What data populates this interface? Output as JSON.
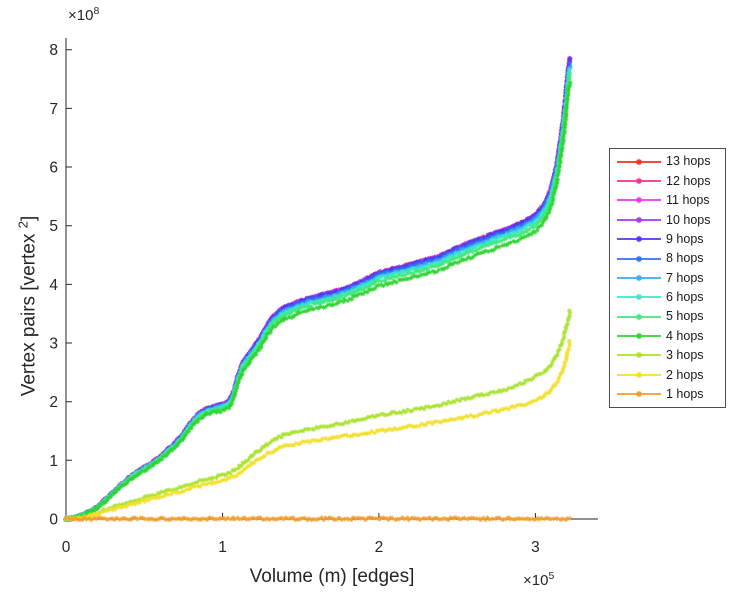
{
  "figure": {
    "title": "",
    "xlabel": "Volume (m) [edges]",
    "ylabel_main": "Vertex pairs [vertex ",
    "ylabel_sup": "2",
    "ylabel_end": "]",
    "x_exponent_prefix": "×10",
    "x_exponent_sup": "5",
    "y_exponent_prefix": "×10",
    "y_exponent_sup": "8",
    "axis_color": "#262626",
    "text_color": "#262626",
    "background_color": "#ffffff",
    "legend_border_color": "#4d4d4d"
  },
  "chart_data": {
    "type": "line",
    "marker": "asterisk",
    "title": "",
    "xlabel": "Volume (m) [edges]",
    "ylabel": "Vertex pairs [vertex^2]",
    "xlim": [
      0,
      340000
    ],
    "ylim": [
      0,
      820000000
    ],
    "grid": false,
    "legend_position": "right-outside-center",
    "x_ticks": {
      "values": [
        0,
        100000,
        200000,
        300000
      ],
      "labels": [
        "0",
        "1",
        "2",
        "3"
      ]
    },
    "y_ticks": {
      "values": [
        0,
        100000000.0,
        200000000.0,
        300000000.0,
        400000000.0,
        500000000.0,
        600000000.0,
        700000000.0,
        800000000.0
      ],
      "labels": [
        "0",
        "1",
        "2",
        "3",
        "4",
        "5",
        "6",
        "7",
        "8"
      ]
    },
    "base_curves": {
      "upper": [
        [
          0,
          0
        ],
        [
          5000,
          2000000.0
        ],
        [
          10000,
          6000000.0
        ],
        [
          15000,
          12000000.0
        ],
        [
          20000,
          20000000.0
        ],
        [
          25000,
          32000000.0
        ],
        [
          30000,
          44000000.0
        ],
        [
          35000,
          57000000.0
        ],
        [
          40000,
          68000000.0
        ],
        [
          45000,
          78000000.0
        ],
        [
          50000,
          86000000.0
        ],
        [
          55000,
          94000000.0
        ],
        [
          60000,
          104000000.0
        ],
        [
          65000,
          116000000.0
        ],
        [
          70000,
          128000000.0
        ],
        [
          75000,
          143000000.0
        ],
        [
          80000,
          162000000.0
        ],
        [
          85000,
          177000000.0
        ],
        [
          90000,
          185000000.0
        ],
        [
          95000,
          189000000.0
        ],
        [
          100000,
          192000000.0
        ],
        [
          104000,
          197000000.0
        ],
        [
          107000,
          212000000.0
        ],
        [
          110000,
          240000000.0
        ],
        [
          113000,
          262000000.0
        ],
        [
          116000,
          273000000.0
        ],
        [
          120000,
          288000000.0
        ],
        [
          124000,
          303000000.0
        ],
        [
          128000,
          322000000.0
        ],
        [
          132000,
          338000000.0
        ],
        [
          136000,
          348000000.0
        ],
        [
          140000,
          355000000.0
        ],
        [
          145000,
          360000000.0
        ],
        [
          150000,
          366000000.0
        ],
        [
          160000,
          373000000.0
        ],
        [
          170000,
          380000000.0
        ],
        [
          180000,
          388000000.0
        ],
        [
          190000,
          400000000.0
        ],
        [
          200000,
          413000000.0
        ],
        [
          210000,
          420000000.0
        ],
        [
          220000,
          427000000.0
        ],
        [
          230000,
          434000000.0
        ],
        [
          240000,
          442000000.0
        ],
        [
          250000,
          455000000.0
        ],
        [
          260000,
          465000000.0
        ],
        [
          270000,
          475000000.0
        ],
        [
          280000,
          485000000.0
        ],
        [
          290000,
          495000000.0
        ],
        [
          295000,
          502000000.0
        ],
        [
          300000,
          510000000.0
        ],
        [
          305000,
          525000000.0
        ],
        [
          308000,
          540000000.0
        ],
        [
          310000,
          555000000.0
        ],
        [
          312000,
          575000000.0
        ],
        [
          314000,
          600000000.0
        ],
        [
          316000,
          635000000.0
        ],
        [
          318000,
          675000000.0
        ],
        [
          319000,
          700000000.0
        ],
        [
          320000,
          730000000.0
        ],
        [
          321000,
          755000000.0
        ],
        [
          322000,
          772000000.0
        ]
      ],
      "three": [
        [
          0,
          0
        ],
        [
          10000,
          2000000.0
        ],
        [
          15000,
          5000000.0
        ],
        [
          20000,
          10000000.0
        ],
        [
          30000,
          20000000.0
        ],
        [
          40000,
          28000000.0
        ],
        [
          50000,
          36000000.0
        ],
        [
          60000,
          44000000.0
        ],
        [
          70000,
          52000000.0
        ],
        [
          80000,
          60000000.0
        ],
        [
          90000,
          68000000.0
        ],
        [
          100000,
          75000000.0
        ],
        [
          105000,
          80000000.0
        ],
        [
          110000,
          88000000.0
        ],
        [
          115000,
          98000000.0
        ],
        [
          120000,
          110000000.0
        ],
        [
          125000,
          120000000.0
        ],
        [
          130000,
          130000000.0
        ],
        [
          135000,
          138000000.0
        ],
        [
          140000,
          144000000.0
        ],
        [
          150000,
          150000000.0
        ],
        [
          160000,
          155000000.0
        ],
        [
          170000,
          160000000.0
        ],
        [
          180000,
          165000000.0
        ],
        [
          190000,
          170000000.0
        ],
        [
          200000,
          177000000.0
        ],
        [
          220000,
          185000000.0
        ],
        [
          240000,
          195000000.0
        ],
        [
          260000,
          208000000.0
        ],
        [
          280000,
          220000000.0
        ],
        [
          290000,
          230000000.0
        ],
        [
          300000,
          242000000.0
        ],
        [
          305000,
          250000000.0
        ],
        [
          310000,
          262000000.0
        ],
        [
          314000,
          280000000.0
        ],
        [
          317000,
          300000000.0
        ],
        [
          319000,
          320000000.0
        ],
        [
          321000,
          340000000.0
        ],
        [
          322000,
          355000000.0
        ]
      ],
      "two": [
        [
          0,
          0
        ],
        [
          10000,
          1500000.0
        ],
        [
          15000,
          4000000.0
        ],
        [
          20000,
          8000000.0
        ],
        [
          30000,
          17000000.0
        ],
        [
          40000,
          24000000.0
        ],
        [
          50000,
          31000000.0
        ],
        [
          60000,
          38000000.0
        ],
        [
          70000,
          45000000.0
        ],
        [
          80000,
          52000000.0
        ],
        [
          90000,
          60000000.0
        ],
        [
          100000,
          66000000.0
        ],
        [
          105000,
          70000000.0
        ],
        [
          110000,
          77000000.0
        ],
        [
          115000,
          86000000.0
        ],
        [
          120000,
          97000000.0
        ],
        [
          125000,
          106000000.0
        ],
        [
          130000,
          113000000.0
        ],
        [
          135000,
          120000000.0
        ],
        [
          140000,
          125000000.0
        ],
        [
          150000,
          130000000.0
        ],
        [
          160000,
          134000000.0
        ],
        [
          170000,
          138000000.0
        ],
        [
          180000,
          142000000.0
        ],
        [
          190000,
          145000000.0
        ],
        [
          200000,
          150000000.0
        ],
        [
          220000,
          158000000.0
        ],
        [
          240000,
          166000000.0
        ],
        [
          260000,
          176000000.0
        ],
        [
          280000,
          187000000.0
        ],
        [
          290000,
          193000000.0
        ],
        [
          300000,
          202000000.0
        ],
        [
          305000,
          210000000.0
        ],
        [
          310000,
          220000000.0
        ],
        [
          314000,
          235000000.0
        ],
        [
          317000,
          252000000.0
        ],
        [
          319000,
          268000000.0
        ],
        [
          321000,
          288000000.0
        ],
        [
          322000,
          302000000.0
        ]
      ],
      "one": [
        [
          0,
          500000.0
        ],
        [
          40000,
          500000.0
        ],
        [
          80000,
          500000.0
        ],
        [
          120000,
          500000.0
        ],
        [
          160000,
          500000.0
        ],
        [
          200000,
          500000.0
        ],
        [
          240000,
          500000.0
        ],
        [
          280000,
          500000.0
        ],
        [
          322000,
          500000.0
        ]
      ]
    },
    "series": [
      {
        "label": "13 hops",
        "color": "#fa2f21",
        "curve": "upper",
        "scale": 1.016
      },
      {
        "label": "12 hops",
        "color": "#f5308e",
        "curve": "upper",
        "scale": 1.016
      },
      {
        "label": "11 hops",
        "color": "#f233f2",
        "curve": "upper",
        "scale": 1.016
      },
      {
        "label": "10 hops",
        "color": "#a833f0",
        "curve": "upper",
        "scale": 1.016
      },
      {
        "label": "9 hops",
        "color": "#5134f0",
        "curve": "upper",
        "scale": 1.016
      },
      {
        "label": "8 hops",
        "color": "#3070f0",
        "curve": "upper",
        "scale": 1.008
      },
      {
        "label": "7 hops",
        "color": "#38abf5",
        "curve": "upper",
        "scale": 1.0
      },
      {
        "label": "6 hops",
        "color": "#3ae8ca",
        "curve": "upper",
        "scale": 0.993
      },
      {
        "label": "5 hops",
        "color": "#3fe87e",
        "curve": "upper",
        "scale": 0.982
      },
      {
        "label": "4 hops",
        "color": "#30d330",
        "curve": "upper",
        "scale": 0.962
      },
      {
        "label": "3 hops",
        "color": "#a8e32b",
        "curve": "three",
        "scale": 1.0
      },
      {
        "label": "2 hops",
        "color": "#f2df2b",
        "curve": "two",
        "scale": 1.0
      },
      {
        "label": "1 hops",
        "color": "#f59b28",
        "curve": "one",
        "scale": 1.0
      }
    ]
  }
}
